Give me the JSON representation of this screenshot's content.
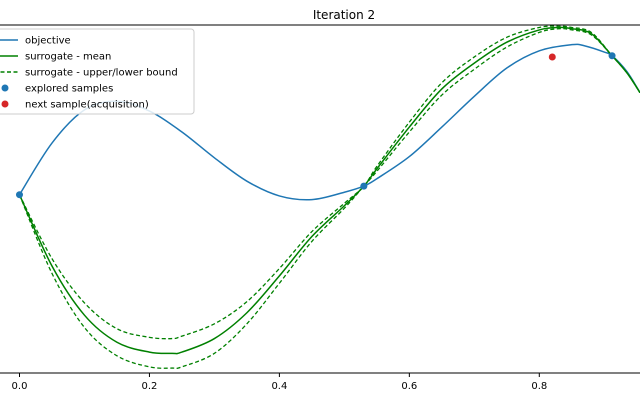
{
  "chart_data": {
    "type": "line",
    "title": "Iteration 2",
    "xlabel": "",
    "ylabel": "",
    "xlim": [
      -0.03,
      0.955
    ],
    "ylim": [
      -1.45,
      1.38
    ],
    "x_ticks": [
      0.0,
      0.2,
      0.4,
      0.6,
      0.8
    ],
    "x_tick_labels": [
      "0.0",
      "0.2",
      "0.4",
      "0.6",
      "0.8"
    ],
    "grid": false,
    "legend_position": "top-left",
    "colors": {
      "objective": "#1f77b4",
      "surrogate": "#008000",
      "explored": "#1f77b4",
      "next": "#d62728"
    },
    "legend": [
      {
        "label": "objective",
        "kind": "line",
        "color": "#1f77b4"
      },
      {
        "label": "surrogate - mean",
        "kind": "line",
        "color": "#008000"
      },
      {
        "label": "surrogate - upper/lower bound",
        "kind": "dashed",
        "color": "#008000"
      },
      {
        "label": "explored samples",
        "kind": "dot",
        "color": "#1f77b4"
      },
      {
        "label": "next sample(acquisition)",
        "kind": "dot",
        "color": "#d62728"
      }
    ],
    "series": [
      {
        "name": "objective",
        "x": [
          0.0,
          0.05,
          0.1,
          0.15,
          0.2,
          0.25,
          0.3,
          0.35,
          0.4,
          0.45,
          0.5,
          0.53,
          0.55,
          0.6,
          0.65,
          0.7,
          0.75,
          0.8,
          0.85,
          0.87,
          0.9,
          0.912,
          0.935,
          0.955
        ],
        "y": [
          0.0,
          0.42,
          0.69,
          0.76,
          0.68,
          0.51,
          0.3,
          0.11,
          -0.01,
          -0.04,
          0.02,
          0.07,
          0.13,
          0.31,
          0.55,
          0.8,
          1.03,
          1.17,
          1.22,
          1.21,
          1.16,
          1.13,
          1.0,
          0.83
        ]
      },
      {
        "name": "surrogate - mean",
        "x": [
          0.0,
          0.05,
          0.1,
          0.15,
          0.2,
          0.235,
          0.25,
          0.3,
          0.35,
          0.4,
          0.45,
          0.5,
          0.53,
          0.55,
          0.6,
          0.65,
          0.7,
          0.75,
          0.8,
          0.83,
          0.85,
          0.88,
          0.912,
          0.935,
          0.955
        ],
        "y": [
          0.0,
          -0.58,
          -0.98,
          -1.2,
          -1.28,
          -1.29,
          -1.28,
          -1.17,
          -0.96,
          -0.66,
          -0.34,
          -0.09,
          0.07,
          0.21,
          0.55,
          0.86,
          1.07,
          1.24,
          1.34,
          1.36,
          1.35,
          1.31,
          1.13,
          0.99,
          0.83
        ]
      },
      {
        "name": "surrogate - upper bound",
        "x": [
          0.0,
          0.05,
          0.1,
          0.15,
          0.2,
          0.235,
          0.25,
          0.3,
          0.35,
          0.4,
          0.45,
          0.5,
          0.53,
          0.55,
          0.6,
          0.65,
          0.7,
          0.75,
          0.8,
          0.83,
          0.85,
          0.88,
          0.912,
          0.935,
          0.955
        ],
        "y": [
          0.0,
          -0.52,
          -0.88,
          -1.09,
          -1.16,
          -1.17,
          -1.15,
          -1.05,
          -0.87,
          -0.6,
          -0.3,
          -0.07,
          0.07,
          0.23,
          0.59,
          0.91,
          1.12,
          1.28,
          1.36,
          1.37,
          1.36,
          1.32,
          1.13,
          0.99,
          0.83
        ]
      },
      {
        "name": "surrogate - lower bound",
        "x": [
          0.0,
          0.05,
          0.1,
          0.15,
          0.2,
          0.235,
          0.25,
          0.3,
          0.35,
          0.4,
          0.45,
          0.5,
          0.53,
          0.55,
          0.6,
          0.65,
          0.7,
          0.75,
          0.8,
          0.83,
          0.85,
          0.88,
          0.912,
          0.935,
          0.955
        ],
        "y": [
          0.0,
          -0.64,
          -1.08,
          -1.31,
          -1.4,
          -1.41,
          -1.4,
          -1.29,
          -1.05,
          -0.72,
          -0.38,
          -0.11,
          0.07,
          0.19,
          0.51,
          0.81,
          1.02,
          1.2,
          1.32,
          1.35,
          1.34,
          1.3,
          1.13,
          0.99,
          0.83
        ]
      }
    ],
    "explored_samples": [
      {
        "x": 0.0,
        "y": 0.0
      },
      {
        "x": 0.53,
        "y": 0.07
      },
      {
        "x": 0.912,
        "y": 1.13
      }
    ],
    "next_sample": {
      "x": 0.82,
      "y": 1.12
    }
  }
}
